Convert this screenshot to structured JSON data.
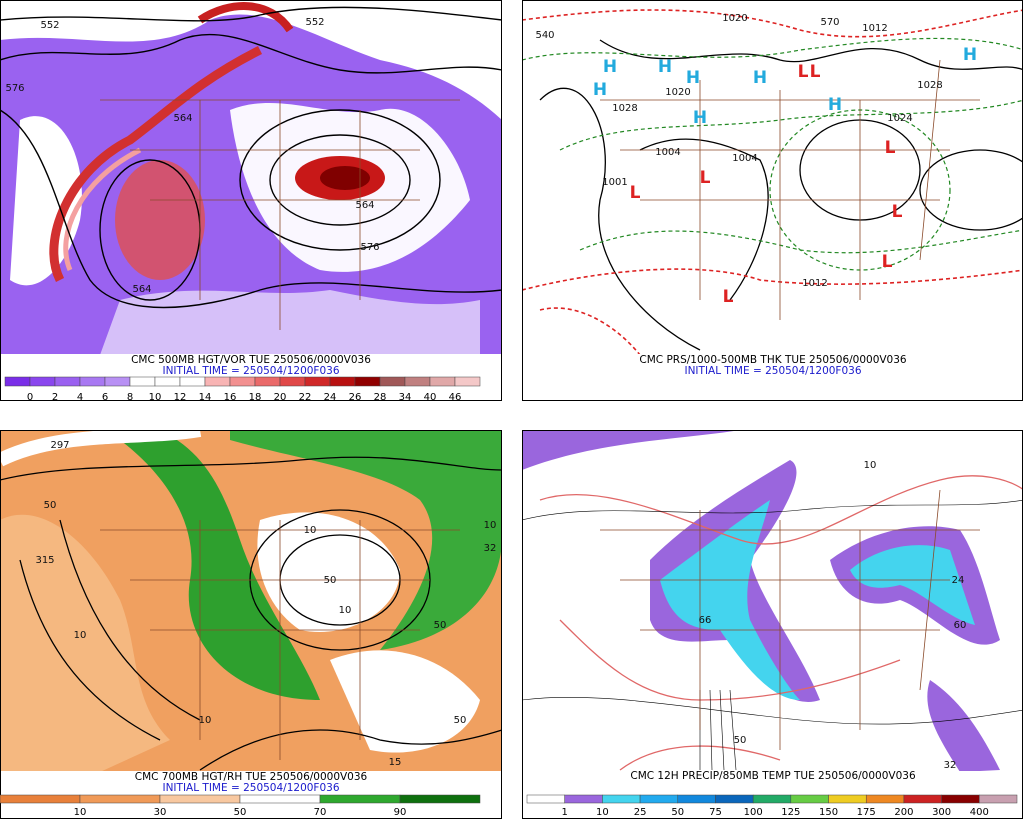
{
  "panels": [
    {
      "caption": "CMC 500MB HGT/VOR TUE 250506/0000V036",
      "initial": "INITIAL TIME = 250504/1200F036",
      "colorbar": {
        "labels": [
          "0",
          "2",
          "4",
          "6",
          "8",
          "10",
          "12",
          "14",
          "16",
          "18",
          "20",
          "22",
          "24",
          "26",
          "28",
          "34",
          "40",
          "46"
        ],
        "colors": [
          "#7a2ee8",
          "#8a46ee",
          "#9a60f0",
          "#a878f2",
          "#b890f4",
          "#ffffff",
          "#ffffff",
          "#ffffff",
          "#f8b4b4",
          "#f29090",
          "#ea6a6a",
          "#e04848",
          "#d02828",
          "#b81010",
          "#900000",
          "#a05858",
          "#c08080",
          "#e0a8a8",
          "#f4c8c8"
        ]
      },
      "map_labels": [
        "552",
        "552",
        "576",
        "564",
        "564",
        "576",
        "564"
      ]
    },
    {
      "caption": "CMC PRS/1000-500MB THK TUE 250506/0000V036",
      "initial": "INITIAL TIME = 250504/1200F036",
      "map_labels": [
        "H",
        "H",
        "H",
        "H",
        "H",
        "H",
        "H",
        "H",
        "L",
        "L",
        "L",
        "L",
        "L",
        "L",
        "L",
        "L",
        "1020",
        "1012",
        "540",
        "1028",
        "1020",
        "1028",
        "1024",
        "1004",
        "1004",
        "1001",
        "570",
        "1012"
      ]
    },
    {
      "caption": "CMC 700MB HGT/RH TUE 250506/0000V036",
      "initial": "INITIAL TIME = 250504/1200F036",
      "colorbar": {
        "labels": [
          "10",
          "30",
          "50",
          "70",
          "90"
        ],
        "colors": [
          "#e8803a",
          "#f09a58",
          "#f8c8a0",
          "#ffffff",
          "#2ea82e",
          "#0e700e"
        ]
      },
      "map_labels": [
        "297",
        "315",
        "10",
        "50",
        "10",
        "50",
        "10",
        "50",
        "10",
        "50",
        "15",
        "32",
        "10"
      ]
    },
    {
      "caption": "CMC 12H PRECIP/850MB TEMP TUE 250506/0000V036",
      "colorbar": {
        "labels": [
          "1",
          "10",
          "25",
          "50",
          "75",
          "100",
          "125",
          "150",
          "175",
          "200",
          "300",
          "400"
        ],
        "colors": [
          "#ffffff",
          "#9a66dd",
          "#44d4ee",
          "#22aaee",
          "#1188dd",
          "#0a66bb",
          "#22aa66",
          "#66cc44",
          "#eecc22",
          "#ee8822",
          "#cc2222",
          "#880000",
          "#c8a0b0"
        ]
      },
      "map_labels": [
        "10",
        "60",
        "66",
        "50",
        "24",
        "32"
      ]
    }
  ]
}
